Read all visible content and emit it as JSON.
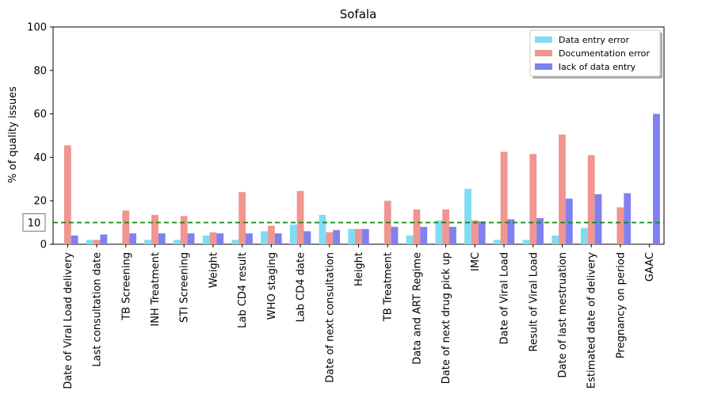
{
  "chart_data": {
    "type": "bar",
    "title": "Sofala",
    "xlabel": "",
    "ylabel": "% of quality issues",
    "ylim": [
      0,
      100
    ],
    "yticks": [
      0,
      20,
      40,
      60,
      80,
      100
    ],
    "categories": [
      "Date of Viral Load delivery",
      "Last consultation date",
      "TB Screening",
      "INH Treatment",
      "STI Screening",
      "Weight",
      "Lab CD4 result",
      "WHO staging",
      "Lab CD4 date",
      "Date of next consultation",
      "Height",
      "TB Treatment",
      "Data and ART Regime",
      "Date of next drug pick up",
      "IMC",
      "Date of Viral Load",
      "Result of Viral Load",
      "Date of last mestruation",
      "Estimated date of delivery",
      "Pregnancy on period",
      "GAAC"
    ],
    "series": [
      {
        "name": "Data entry error",
        "color": "#80dcf2",
        "values": [
          0,
          2,
          0,
          2,
          2,
          4,
          2,
          6,
          9,
          13.5,
          7,
          0,
          4,
          11,
          25.5,
          2,
          2,
          4,
          7.5,
          0,
          0
        ]
      },
      {
        "name": "Documentation error",
        "color": "#f0958f",
        "values": [
          45.5,
          2,
          15.5,
          13.5,
          13,
          5.5,
          24,
          8.5,
          24.5,
          5.5,
          7,
          20,
          16,
          16,
          11,
          42.5,
          41.5,
          50.5,
          41,
          17,
          0
        ]
      },
      {
        "name": "lack of data entry",
        "color": "#8080f0",
        "values": [
          4,
          4.5,
          5,
          5,
          5,
          5,
          5,
          5,
          6,
          6.5,
          7,
          8,
          8,
          8,
          10.5,
          11.5,
          12,
          21,
          23,
          23.5,
          60
        ]
      }
    ],
    "reference_line": {
      "value": 10,
      "label": "10",
      "color": "#118811",
      "style": "dashed"
    },
    "legend": {
      "placement": "top-right"
    }
  }
}
